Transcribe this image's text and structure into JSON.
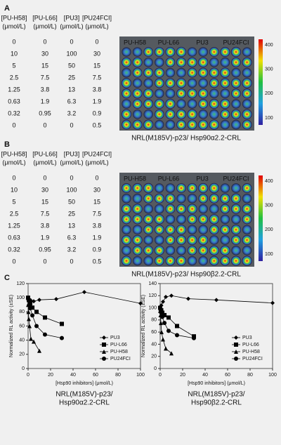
{
  "panels": [
    {
      "label": "A",
      "table": {
        "headers": [
          [
            "[PU-H58]",
            "(μmol/L)"
          ],
          [
            "[PU-L66]",
            "(μmol/L)"
          ],
          [
            "[PU3]",
            "(μmol/L)"
          ],
          [
            "[PU24FCI]",
            "(μmol/L)"
          ]
        ],
        "rows": [
          [
            0,
            0,
            0,
            0
          ],
          [
            10,
            30,
            100,
            30
          ],
          [
            5,
            15,
            50,
            15
          ],
          [
            2.5,
            7.5,
            25,
            7.5
          ],
          [
            1.25,
            3.8,
            13,
            3.8
          ],
          [
            0.63,
            1.9,
            6.3,
            1.9
          ],
          [
            0.32,
            0.95,
            3.2,
            0.9
          ],
          [
            0,
            0,
            0,
            0.5
          ]
        ]
      },
      "plate": {
        "labels": [
          "PU-H58",
          "PU-L66",
          "PU3",
          "PU24FCI"
        ],
        "colorbar_ticks": [
          400,
          300,
          200,
          100
        ]
      },
      "caption": "NRL(M185V)-p23/ Hsp90α2.2-CRL"
    },
    {
      "label": "B",
      "table": {
        "headers": [
          [
            "[PU-H58]",
            "(μmol/L)"
          ],
          [
            "[PU-L66]",
            "(μmol/L)"
          ],
          [
            "[PU3]",
            "(μmol/L)"
          ],
          [
            "[PU24FCI]",
            "(μmol/L)"
          ]
        ],
        "rows": [
          [
            0,
            0,
            0,
            0
          ],
          [
            10,
            30,
            100,
            30
          ],
          [
            5,
            15,
            50,
            15
          ],
          [
            2.5,
            7.5,
            25,
            7.5
          ],
          [
            1.25,
            3.8,
            13,
            3.8
          ],
          [
            0.63,
            1.9,
            6.3,
            1.9
          ],
          [
            0.32,
            0.95,
            3.2,
            0.9
          ],
          [
            0,
            0,
            0,
            0.5
          ]
        ]
      },
      "plate": {
        "labels": [
          "PU-H58",
          "PU-L66",
          "PU3",
          "PU24FCI"
        ],
        "colorbar_ticks": [
          400,
          300,
          200,
          100
        ]
      },
      "caption": "NRL(M185V)-p23/ Hsp90β2.2-CRL"
    }
  ],
  "panel_c_label": "C",
  "chart_data": [
    {
      "type": "line",
      "ylabel": "Normalized RL activity (±SE)",
      "xlabel": "[Hsp90 inhibitors] (μmol/L)",
      "caption": [
        "NRL(M185V)-p23/",
        "Hsp90α2.2-CRL"
      ],
      "xlim": [
        0,
        100
      ],
      "ylim": [
        0,
        120
      ],
      "xticks": [
        0,
        20,
        40,
        60,
        80,
        100
      ],
      "yticks": [
        0,
        20,
        40,
        60,
        80,
        100,
        120
      ],
      "legend": "lower right",
      "series": [
        {
          "name": "PU3",
          "marker": "diamond",
          "color": "#000000",
          "x": [
            0,
            1,
            2.5,
            5,
            10,
            25,
            50,
            100
          ],
          "values": [
            100,
            98,
            96,
            95,
            97,
            98,
            108,
            92
          ]
        },
        {
          "name": "PU-L66",
          "marker": "square",
          "color": "#000000",
          "x": [
            0,
            0.95,
            1.9,
            3.8,
            7.5,
            15,
            30
          ],
          "values": [
            100,
            96,
            92,
            86,
            80,
            72,
            63
          ]
        },
        {
          "name": "PU-H58",
          "marker": "triangle",
          "color": "#000000",
          "x": [
            0,
            0.32,
            0.63,
            1.25,
            2.5,
            5,
            10
          ],
          "values": [
            90,
            80,
            70,
            60,
            42,
            38,
            25
          ]
        },
        {
          "name": "PU24FCI",
          "marker": "circle",
          "color": "#000000",
          "x": [
            0,
            0.5,
            0.9,
            1.9,
            3.8,
            7.5,
            15,
            30
          ],
          "values": [
            100,
            96,
            90,
            85,
            75,
            60,
            48,
            43
          ]
        }
      ]
    },
    {
      "type": "line",
      "ylabel": "Normalized RL activity (±SE)",
      "xlabel": "[Hsp90 inhibitors] (μmol/L)",
      "caption": [
        "NRL(M185V)-p23/",
        "Hsp90β2.2-CRL"
      ],
      "xlim": [
        0,
        100
      ],
      "ylim": [
        0,
        140
      ],
      "xticks": [
        0,
        20,
        40,
        60,
        80,
        100
      ],
      "yticks": [
        0,
        20,
        40,
        60,
        80,
        100,
        120,
        140
      ],
      "legend": "lower right",
      "series": [
        {
          "name": "PU3",
          "marker": "diamond",
          "color": "#000000",
          "x": [
            0,
            1,
            2.5,
            5,
            10,
            25,
            50,
            100
          ],
          "values": [
            100,
            104,
            110,
            118,
            120,
            115,
            113,
            108
          ]
        },
        {
          "name": "PU-L66",
          "marker": "square",
          "color": "#000000",
          "x": [
            0,
            0.95,
            1.9,
            3.8,
            7.5,
            15,
            30
          ],
          "values": [
            100,
            96,
            92,
            88,
            84,
            70,
            53
          ]
        },
        {
          "name": "PU-H58",
          "marker": "triangle",
          "color": "#000000",
          "x": [
            0,
            0.32,
            0.63,
            1.25,
            2.5,
            5,
            10
          ],
          "values": [
            95,
            88,
            75,
            60,
            48,
            33,
            25
          ]
        },
        {
          "name": "PU24FCI",
          "marker": "circle",
          "color": "#000000",
          "x": [
            0,
            0.5,
            0.9,
            1.9,
            3.8,
            7.5,
            15,
            30
          ],
          "values": [
            100,
            95,
            92,
            85,
            75,
            62,
            55,
            50
          ]
        }
      ]
    }
  ]
}
